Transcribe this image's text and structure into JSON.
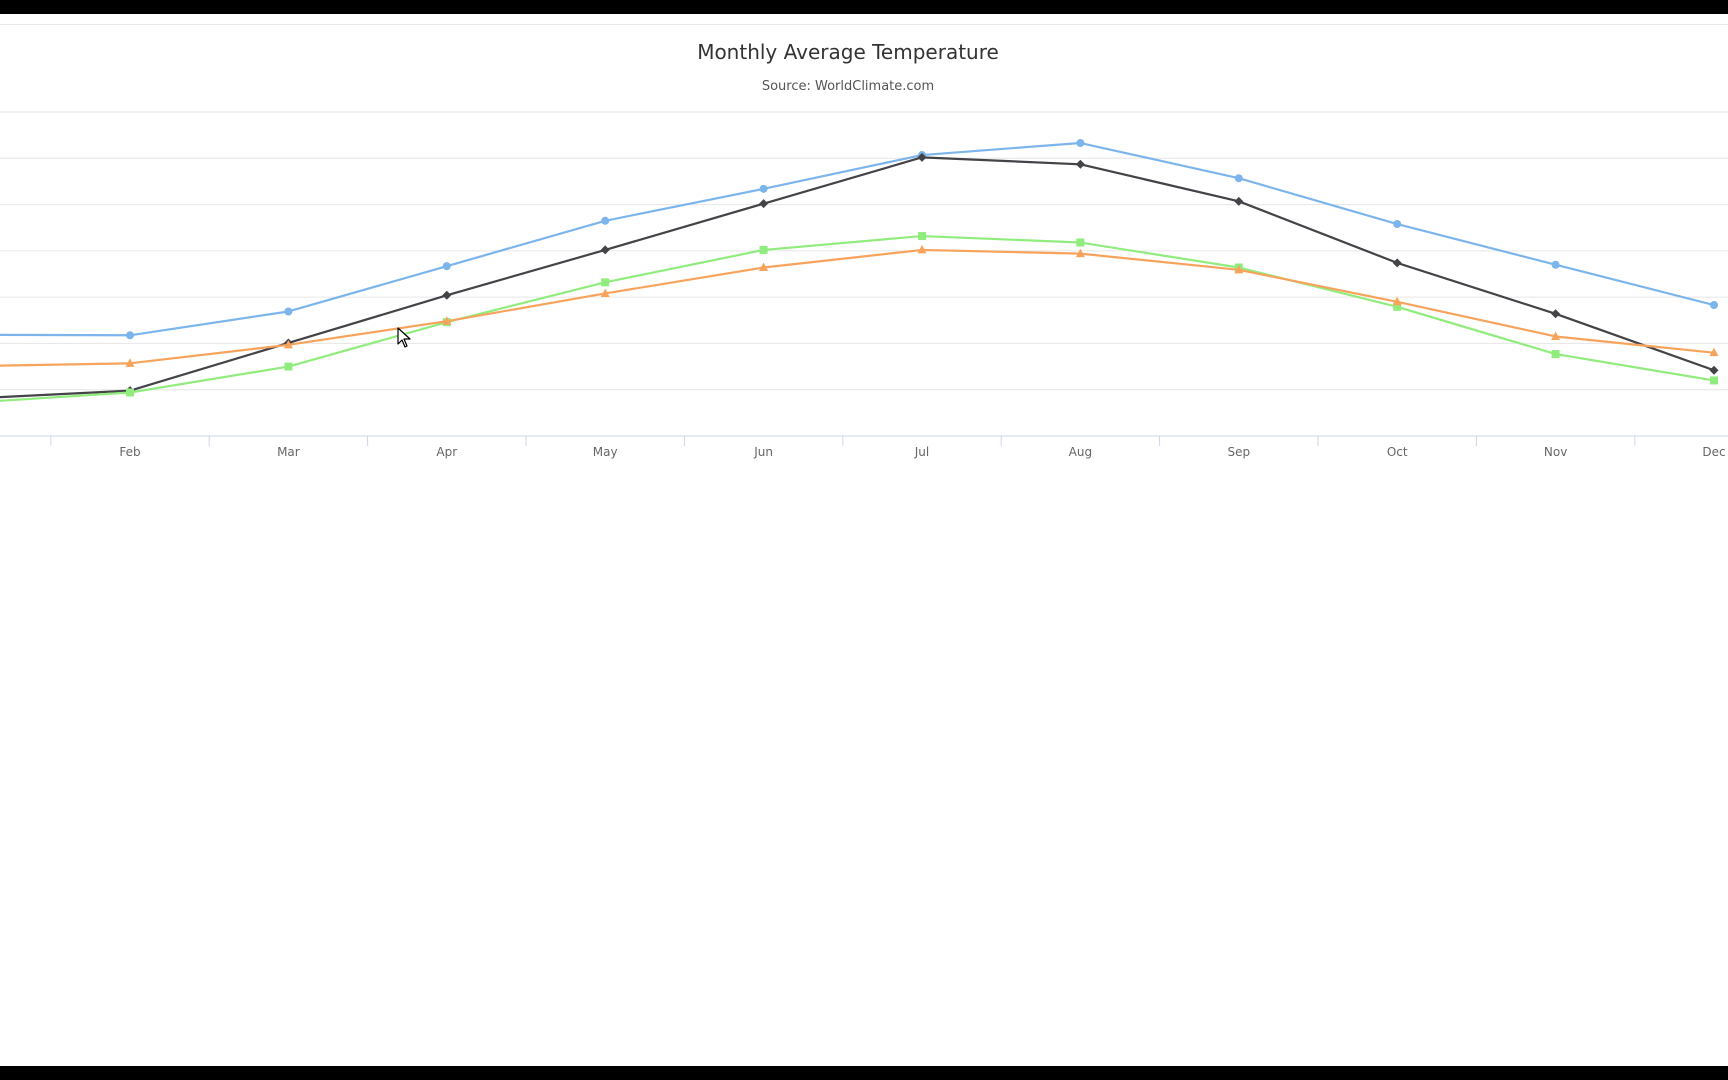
{
  "chart_data": {
    "type": "line",
    "title": "Monthly Average Temperature",
    "subtitle": "Source: WorldClimate.com",
    "categories": [
      "Feb",
      "Mar",
      "Apr",
      "May",
      "Jun",
      "Jul",
      "Aug",
      "Sep",
      "Oct",
      "Nov",
      "Dec"
    ],
    "xlabel": "",
    "ylabel": "",
    "grid": true,
    "legend": "none",
    "series": [
      {
        "color": "#7cb5ec",
        "marker": "circle",
        "values": [
          5.88,
          8.45,
          13.35,
          18.25,
          21.7,
          25.35,
          26.65,
          22.85,
          17.9,
          13.5,
          9.15
        ],
        "left_edge_value": 5.92
      },
      {
        "color": "#434348",
        "marker": "diamond",
        "values": [
          -0.1,
          5.05,
          10.2,
          15.1,
          20.1,
          25.1,
          24.35,
          20.35,
          13.7,
          8.2,
          2.1
        ],
        "left_edge_value": -0.8
      },
      {
        "color": "#90ed7d",
        "marker": "square",
        "values": [
          -0.3,
          2.5,
          7.3,
          11.6,
          15.1,
          16.6,
          15.9,
          13.2,
          8.95,
          3.85,
          1.0
        ],
        "left_edge_value": -1.2
      },
      {
        "color": "#f7a35c",
        "marker": "triangle",
        "values": [
          2.85,
          4.85,
          7.4,
          10.4,
          13.2,
          15.1,
          14.7,
          12.95,
          9.5,
          5.75,
          4.0
        ],
        "left_edge_value": 2.6
      }
    ]
  }
}
